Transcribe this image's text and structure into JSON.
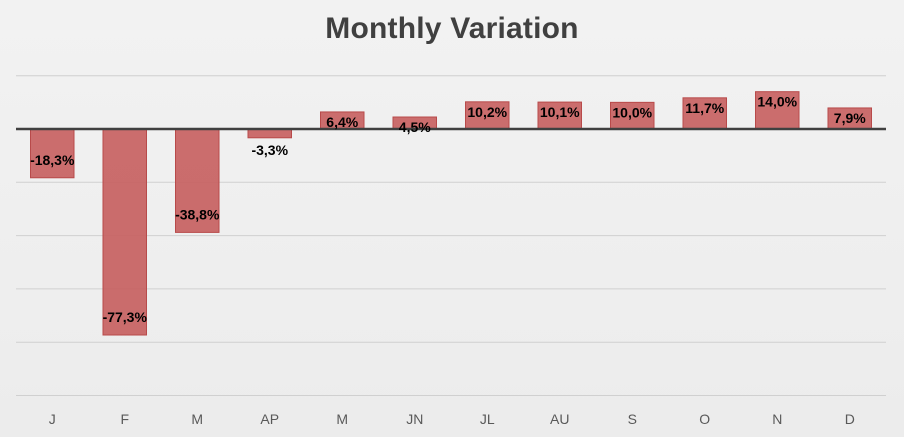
{
  "chart_data": {
    "type": "bar",
    "title": "Monthly Variation",
    "xlabel": "",
    "ylabel": "",
    "categories": [
      "J",
      "F",
      "M",
      "AP",
      "M",
      "JN",
      "JL",
      "AU",
      "S",
      "O",
      "N",
      "D"
    ],
    "values": [
      -18.3,
      -77.3,
      -38.8,
      -3.3,
      6.4,
      4.5,
      10.2,
      10.1,
      10.0,
      11.7,
      14.0,
      7.9
    ],
    "data_labels": [
      "-18,3%",
      "-77,3%",
      "-38,8%",
      "-3,3%",
      "6,4%",
      "4,5%",
      "10,2%",
      "10,1%",
      "10,0%",
      "11,7%",
      "14,0%",
      "7,9%"
    ],
    "unit": "%",
    "ylim": [
      -100,
      20
    ],
    "gridlines": true,
    "legend": "none",
    "bar_color": "#c55a5a"
  }
}
